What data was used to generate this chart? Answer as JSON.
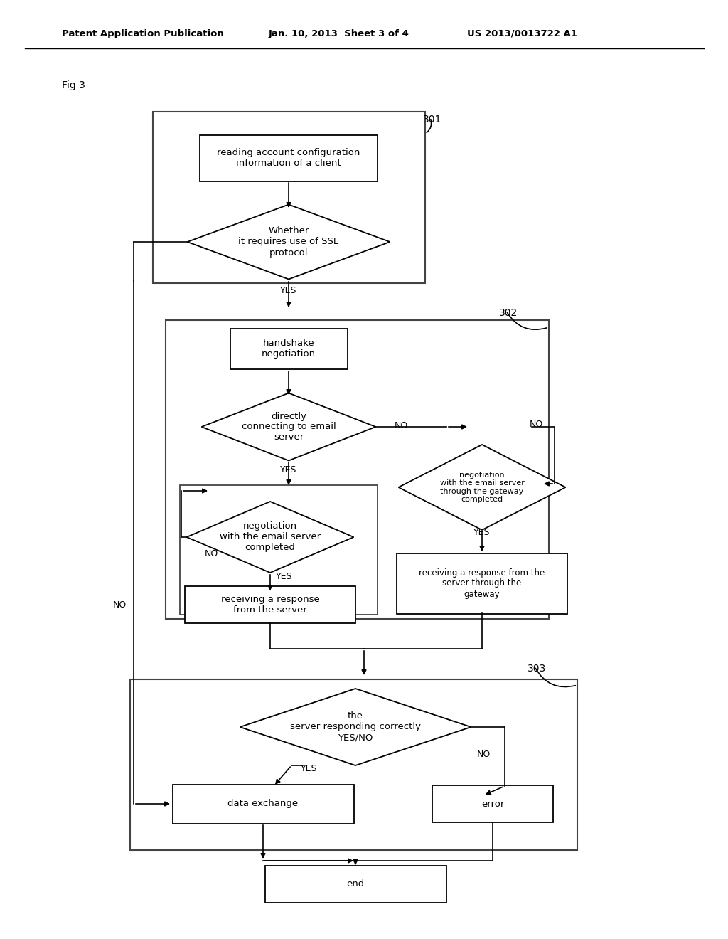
{
  "title_left": "Patent Application Publication",
  "title_mid": "Jan. 10, 2013  Sheet 3 of 4",
  "title_right": "US 2013/0013722 A1",
  "fig_label": "Fig 3",
  "background": "#ffffff",
  "box_color": "#ffffff",
  "box_edge": "#000000",
  "text_color": "#000000",
  "label_301": "301",
  "label_302": "302",
  "label_303": "303"
}
